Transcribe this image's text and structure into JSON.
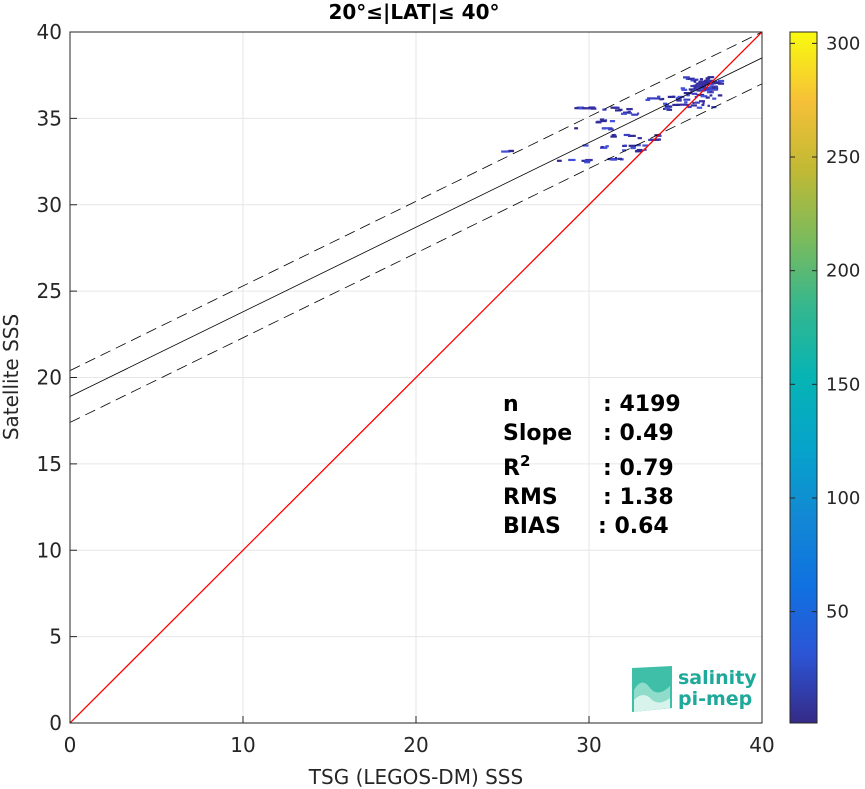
{
  "chart_data": {
    "type": "scatter",
    "title": "20°≤|LAT|≤ 40°",
    "xlabel": "TSG (LEGOS-DM) SSS",
    "ylabel": "Satellite SSS",
    "xlim": [
      0,
      40
    ],
    "ylim": [
      0,
      40
    ],
    "xticks": [
      "0",
      "10",
      "20",
      "30",
      "40"
    ],
    "yticks": [
      "0",
      "5",
      "10",
      "15",
      "20",
      "25",
      "30",
      "35",
      "40"
    ],
    "grid": true,
    "colorbar": {
      "range": [
        1,
        305
      ],
      "ticks": [
        "50",
        "100",
        "150",
        "200",
        "250",
        "300"
      ],
      "colormap": "parula"
    },
    "fit": {
      "slope": 0.49,
      "intercept": 18.9,
      "band": 1.5
    },
    "identity_line_color": "#ff0000",
    "stats": [
      {
        "label": "n",
        "value": ": 4199"
      },
      {
        "label": "Slope",
        "value": ": 0.49"
      },
      {
        "label": "R",
        "sup": "2",
        "value": ": 0.79"
      },
      {
        "label": "RMS",
        "value": ": 1.38"
      },
      {
        "label": "BIAS",
        "value": ": 0.64"
      }
    ],
    "clusters": [
      {
        "x": [
          29.0,
          30.4
        ],
        "y": [
          35.55,
          35.65
        ],
        "density": 8
      },
      {
        "x": [
          30.5,
          32.2
        ],
        "y": [
          35.45,
          35.65
        ],
        "density": 6
      },
      {
        "x": [
          30.0,
          31.5
        ],
        "y": [
          34.75,
          34.95
        ],
        "density": 6
      },
      {
        "x": [
          31.6,
          32.9
        ],
        "y": [
          35.1,
          35.4
        ],
        "density": 6
      },
      {
        "x": [
          33.0,
          36.0
        ],
        "y": [
          36.0,
          36.3
        ],
        "density": 12
      },
      {
        "x": [
          34.2,
          35.0
        ],
        "y": [
          35.5,
          35.9
        ],
        "density": 8
      },
      {
        "x": [
          35.2,
          37.5
        ],
        "y": [
          36.3,
          37.4
        ],
        "density": 40
      },
      {
        "x": [
          35.0,
          37.3
        ],
        "y": [
          35.6,
          36.3
        ],
        "density": 20
      },
      {
        "x": [
          28.8,
          31.2
        ],
        "y": [
          34.35,
          34.5
        ],
        "density": 5
      },
      {
        "x": [
          31.0,
          32.4
        ],
        "y": [
          33.95,
          34.15
        ],
        "density": 6
      },
      {
        "x": [
          32.8,
          34.2
        ],
        "y": [
          33.75,
          34.05
        ],
        "density": 6
      },
      {
        "x": [
          31.8,
          33.4
        ],
        "y": [
          33.1,
          33.5
        ],
        "density": 12
      },
      {
        "x": [
          29.0,
          31.2
        ],
        "y": [
          33.3,
          33.45
        ],
        "density": 5
      },
      {
        "x": [
          30.8,
          32.2
        ],
        "y": [
          32.6,
          32.75
        ],
        "density": 6
      },
      {
        "x": [
          27.8,
          29.8
        ],
        "y": [
          32.45,
          32.6
        ],
        "density": 6
      },
      {
        "x": [
          24.8,
          25.4
        ],
        "y": [
          33.05,
          33.15
        ],
        "density": 4
      },
      {
        "x": [
          36.0,
          37.2
        ],
        "y": [
          36.6,
          37.2
        ],
        "density": 60
      }
    ]
  },
  "logo": {
    "line1": "salinity",
    "line2": "pi-mep"
  }
}
